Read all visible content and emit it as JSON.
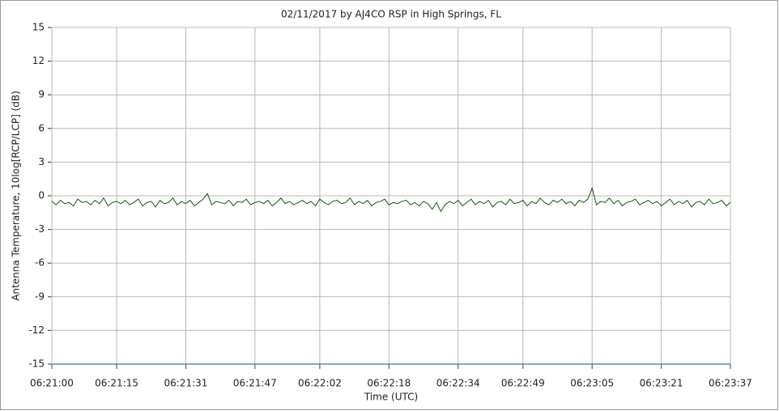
{
  "chart_data": {
    "type": "line",
    "title": "02/11/2017  by  AJ4CO RSP  in  High Springs, FL",
    "x_label": "Time (UTC)",
    "y_label": "Antenna Temperature, 10log[RCP/LCP] (dB)",
    "xlim": [
      "06:21:00",
      "06:23:37"
    ],
    "xticks": [
      "06:21:00",
      "06:21:15",
      "06:21:31",
      "06:21:47",
      "06:22:02",
      "06:22:18",
      "06:22:34",
      "06:22:49",
      "06:23:05",
      "06:23:21",
      "06:23:37"
    ],
    "ylim": [
      -15,
      15
    ],
    "yticks": [
      -15,
      -12,
      -9,
      -6,
      -3,
      0,
      3,
      6,
      9,
      12,
      15
    ],
    "grid": true,
    "x": [
      "06:21:00",
      "06:21:01",
      "06:21:02",
      "06:21:03",
      "06:21:04",
      "06:21:05",
      "06:21:06",
      "06:21:07",
      "06:21:08",
      "06:21:09",
      "06:21:10",
      "06:21:11",
      "06:21:12",
      "06:21:13",
      "06:21:14",
      "06:21:15",
      "06:21:16",
      "06:21:17",
      "06:21:18",
      "06:21:19",
      "06:21:20",
      "06:21:21",
      "06:21:22",
      "06:21:23",
      "06:21:24",
      "06:21:25",
      "06:21:26",
      "06:21:27",
      "06:21:28",
      "06:21:29",
      "06:21:30",
      "06:21:31",
      "06:21:32",
      "06:21:33",
      "06:21:34",
      "06:21:35",
      "06:21:36",
      "06:21:37",
      "06:21:38",
      "06:21:39",
      "06:21:40",
      "06:21:41",
      "06:21:42",
      "06:21:43",
      "06:21:44",
      "06:21:45",
      "06:21:46",
      "06:21:47",
      "06:21:48",
      "06:21:49",
      "06:21:50",
      "06:21:51",
      "06:21:52",
      "06:21:53",
      "06:21:54",
      "06:21:55",
      "06:21:56",
      "06:21:57",
      "06:21:58",
      "06:21:59",
      "06:22:00",
      "06:22:01",
      "06:22:02",
      "06:22:03",
      "06:22:04",
      "06:22:05",
      "06:22:06",
      "06:22:07",
      "06:22:08",
      "06:22:09",
      "06:22:10",
      "06:22:11",
      "06:22:12",
      "06:22:13",
      "06:22:14",
      "06:22:15",
      "06:22:16",
      "06:22:17",
      "06:22:18",
      "06:22:19",
      "06:22:20",
      "06:22:21",
      "06:22:22",
      "06:22:23",
      "06:22:24",
      "06:22:25",
      "06:22:26",
      "06:22:27",
      "06:22:28",
      "06:22:29",
      "06:22:30",
      "06:22:31",
      "06:22:32",
      "06:22:33",
      "06:22:34",
      "06:22:35",
      "06:22:36",
      "06:22:37",
      "06:22:38",
      "06:22:39",
      "06:22:40",
      "06:22:41",
      "06:22:42",
      "06:22:43",
      "06:22:44",
      "06:22:45",
      "06:22:46",
      "06:22:47",
      "06:22:48",
      "06:22:49",
      "06:22:50",
      "06:22:51",
      "06:22:52",
      "06:22:53",
      "06:22:54",
      "06:22:55",
      "06:22:56",
      "06:22:57",
      "06:22:58",
      "06:22:59",
      "06:23:00",
      "06:23:01",
      "06:23:02",
      "06:23:03",
      "06:23:04",
      "06:23:05",
      "06:23:06",
      "06:23:07",
      "06:23:08",
      "06:23:09",
      "06:23:10",
      "06:23:11",
      "06:23:12",
      "06:23:13",
      "06:23:14",
      "06:23:15",
      "06:23:16",
      "06:23:17",
      "06:23:18",
      "06:23:19",
      "06:23:20",
      "06:23:21",
      "06:23:22",
      "06:23:23",
      "06:23:24",
      "06:23:25",
      "06:23:26",
      "06:23:27",
      "06:23:28",
      "06:23:29",
      "06:23:30",
      "06:23:31",
      "06:23:32",
      "06:23:33",
      "06:23:34",
      "06:23:35",
      "06:23:36",
      "06:23:37"
    ],
    "series": [
      {
        "color": "#0b5a0b",
        "values": [
          -0.5,
          -0.8,
          -0.4,
          -0.7,
          -0.6,
          -0.9,
          -0.3,
          -0.6,
          -0.5,
          -0.8,
          -0.4,
          -0.7,
          -0.2,
          -0.9,
          -0.6,
          -0.5,
          -0.7,
          -0.4,
          -0.8,
          -0.6,
          -0.3,
          -0.9,
          -0.6,
          -0.5,
          -1.0,
          -0.4,
          -0.7,
          -0.6,
          -0.2,
          -0.8,
          -0.5,
          -0.7,
          -0.4,
          -0.9,
          -0.6,
          -0.3,
          0.2,
          -0.8,
          -0.5,
          -0.6,
          -0.7,
          -0.4,
          -0.9,
          -0.5,
          -0.6,
          -0.3,
          -0.8,
          -0.6,
          -0.5,
          -0.7,
          -0.4,
          -0.9,
          -0.6,
          -0.2,
          -0.7,
          -0.5,
          -0.8,
          -0.6,
          -0.4,
          -0.7,
          -0.5,
          -0.9,
          -0.3,
          -0.6,
          -0.8,
          -0.5,
          -0.4,
          -0.7,
          -0.6,
          -0.2,
          -0.8,
          -0.5,
          -0.7,
          -0.4,
          -0.9,
          -0.6,
          -0.5,
          -0.3,
          -0.8,
          -0.6,
          -0.7,
          -0.5,
          -0.4,
          -0.8,
          -0.6,
          -0.9,
          -0.5,
          -0.7,
          -1.2,
          -0.6,
          -1.4,
          -0.8,
          -0.5,
          -0.7,
          -0.4,
          -0.9,
          -0.6,
          -0.3,
          -0.8,
          -0.5,
          -0.7,
          -0.4,
          -1.0,
          -0.6,
          -0.5,
          -0.8,
          -0.3,
          -0.7,
          -0.6,
          -0.4,
          -0.9,
          -0.5,
          -0.7,
          -0.2,
          -0.6,
          -0.8,
          -0.4,
          -0.6,
          -0.3,
          -0.7,
          -0.5,
          -0.9,
          -0.4,
          -0.6,
          -0.3,
          0.7,
          -0.8,
          -0.5,
          -0.6,
          -0.2,
          -0.7,
          -0.4,
          -0.9,
          -0.6,
          -0.5,
          -0.3,
          -0.8,
          -0.6,
          -0.4,
          -0.7,
          -0.5,
          -0.9,
          -0.6,
          -0.3,
          -0.8,
          -0.5,
          -0.7,
          -0.4,
          -1.0,
          -0.6,
          -0.5,
          -0.8,
          -0.3,
          -0.7,
          -0.6,
          -0.4,
          -0.9,
          -0.6
        ]
      }
    ]
  }
}
